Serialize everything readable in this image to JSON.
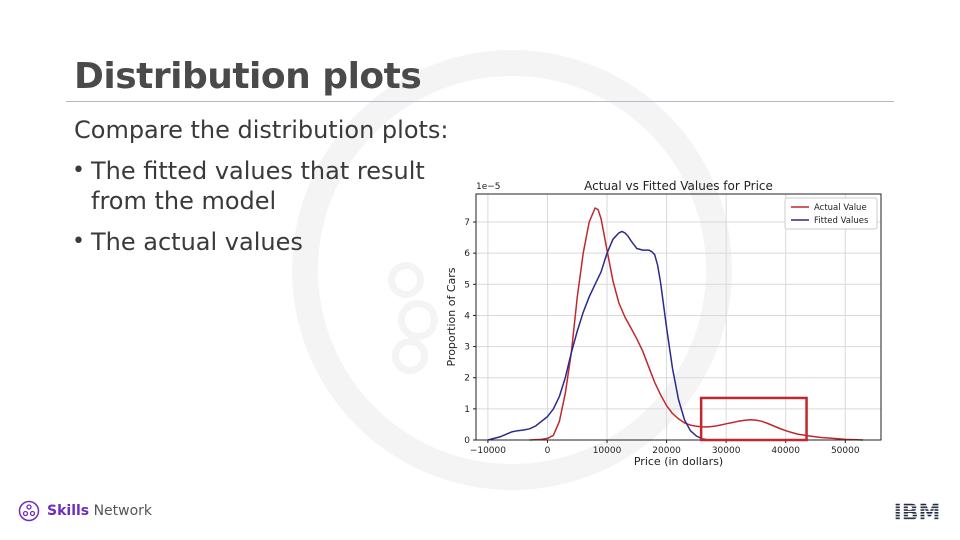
{
  "slide": {
    "title": "Distribution plots",
    "intro": "Compare the distribution plots:",
    "bullets": [
      {
        "line1": "The fitted values that result",
        "line2": "from the model"
      },
      {
        "line1": "The actual values",
        "line2": ""
      }
    ]
  },
  "footer": {
    "brand_bold": "Skills",
    "brand_rest": " Network",
    "logo": "IBM"
  },
  "chart_data": {
    "type": "line",
    "title": "Actual vs Fitted Values for Price",
    "xlabel": "Price (in dollars)",
    "ylabel": "Proportion of Cars",
    "y_scale_label": "1e−5",
    "xlim": [
      -12000,
      56000
    ],
    "ylim": [
      0,
      7.9
    ],
    "x_ticks": [
      -10000,
      0,
      10000,
      20000,
      30000,
      40000,
      50000
    ],
    "x_tick_labels": [
      "−10000",
      "0",
      "10000",
      "20000",
      "30000",
      "40000",
      "50000"
    ],
    "y_ticks": [
      0,
      1,
      2,
      3,
      4,
      5,
      6,
      7
    ],
    "y_tick_labels": [
      "0",
      "1",
      "2",
      "3",
      "4",
      "5",
      "6",
      "7"
    ],
    "grid": true,
    "legend_position": "top-right",
    "series": [
      {
        "name": "Actual Value",
        "color": "#c0282d",
        "x": [
          -3000,
          -1000,
          0,
          1000,
          2000,
          3000,
          4000,
          5000,
          6000,
          7000,
          8000,
          8500,
          9000,
          10000,
          11000,
          12000,
          13000,
          14000,
          15000,
          16000,
          17000,
          18000,
          19000,
          20000,
          21000,
          22000,
          23000,
          24000,
          25000,
          26000,
          27000,
          28000,
          29000,
          30000,
          31000,
          32000,
          33000,
          34000,
          35000,
          36000,
          37000,
          38000,
          39000,
          40000,
          41000,
          42000,
          44000,
          46000,
          48000,
          50000,
          52000,
          53000
        ],
        "y": [
          0,
          0.02,
          0.05,
          0.15,
          0.6,
          1.5,
          2.8,
          4.6,
          6.0,
          7.0,
          7.45,
          7.4,
          7.1,
          6.1,
          5.1,
          4.4,
          3.95,
          3.6,
          3.25,
          2.85,
          2.35,
          1.85,
          1.45,
          1.1,
          0.85,
          0.68,
          0.55,
          0.48,
          0.44,
          0.42,
          0.42,
          0.44,
          0.48,
          0.52,
          0.56,
          0.6,
          0.63,
          0.65,
          0.64,
          0.6,
          0.53,
          0.45,
          0.37,
          0.3,
          0.24,
          0.19,
          0.13,
          0.08,
          0.05,
          0.02,
          0.01,
          0
        ]
      },
      {
        "name": "Fitted Values",
        "color": "#2a2a8f",
        "x": [
          -10000,
          -8000,
          -7000,
          -6000,
          -5000,
          -4000,
          -3000,
          -2000,
          -1000,
          0,
          1000,
          2000,
          3000,
          4000,
          5000,
          6000,
          7000,
          8000,
          9000,
          10000,
          11000,
          12000,
          12500,
          13000,
          13500,
          14000,
          15000,
          16000,
          17000,
          17500,
          18000,
          18500,
          19000,
          20000,
          21000,
          22000,
          23000,
          24000,
          25000,
          26000,
          26500,
          27000
        ],
        "y": [
          0,
          0.1,
          0.18,
          0.26,
          0.3,
          0.32,
          0.36,
          0.45,
          0.6,
          0.75,
          1.0,
          1.4,
          2.0,
          2.8,
          3.5,
          4.1,
          4.6,
          5.0,
          5.4,
          6.0,
          6.45,
          6.65,
          6.7,
          6.65,
          6.55,
          6.4,
          6.15,
          6.1,
          6.1,
          6.05,
          5.95,
          5.6,
          5.05,
          3.6,
          2.3,
          1.3,
          0.65,
          0.3,
          0.13,
          0.04,
          0.02,
          0
        ]
      }
    ],
    "annotations": [
      {
        "type": "box",
        "color": "#c0282d",
        "x0": 25800,
        "x1": 43500,
        "y0": 0,
        "y1": 1.35
      }
    ]
  }
}
